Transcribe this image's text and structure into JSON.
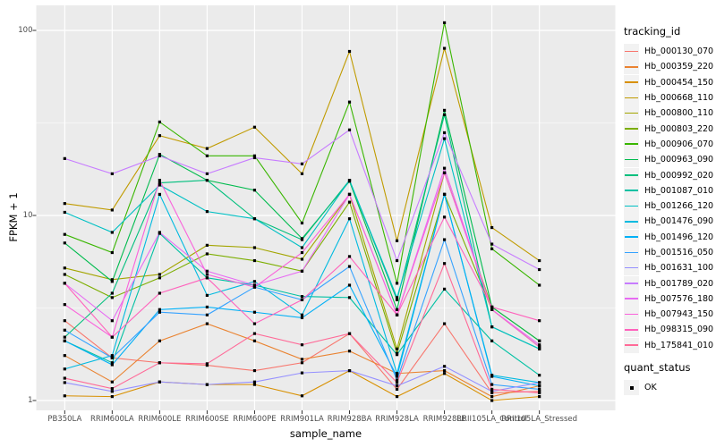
{
  "chart_data": {
    "type": "line",
    "title": "",
    "xlabel": "sample_name",
    "ylabel": "FPKM + 1",
    "y_scale": "log10",
    "y_major_ticks": [
      1,
      10,
      100
    ],
    "y_minor_gridlines": [
      3.162,
      31.62
    ],
    "ylim": [
      0.93,
      135
    ],
    "grid": true,
    "legend_position": "right",
    "legend_title": "tracking_id",
    "quant_legend": {
      "title": "quant_status",
      "items": [
        {
          "label": "OK"
        }
      ]
    },
    "marker": {
      "shape": "square",
      "color": "#000000",
      "size": 3.2
    },
    "panel_bg": "#ebebeb",
    "grid_color": "#ffffff",
    "axis_text_color": "#4d4d4d",
    "legend_key_bg": "#f2f2f2",
    "categories": [
      "PB350LA",
      "RRIM600LA",
      "RRIM600LE",
      "RRIM600SE",
      "RRIM600PE",
      "RRIM901LA",
      "RRIM928BA",
      "RRIM928LA",
      "RRIM928LE",
      "RRII105LA_Control",
      "RRII105LA_Stressed"
    ],
    "series": [
      {
        "name": "Hb_000130_070",
        "color": "#F8766D",
        "values": [
          2.7,
          1.7,
          1.6,
          1.55,
          1.45,
          1.6,
          2.3,
          1.15,
          2.6,
          1.1,
          1.12
        ]
      },
      {
        "name": "Hb_000359_220",
        "color": "#EA8331",
        "values": [
          1.75,
          1.26,
          2.1,
          2.6,
          2.1,
          1.67,
          1.85,
          1.4,
          1.45,
          1.05,
          1.2
        ]
      },
      {
        "name": "Hb_000454_150",
        "color": "#D89000",
        "values": [
          1.06,
          1.05,
          1.26,
          1.22,
          1.22,
          1.06,
          1.45,
          1.05,
          1.4,
          1.0,
          1.05
        ]
      },
      {
        "name": "Hb_000668_110",
        "color": "#C09B00",
        "values": [
          11.6,
          10.7,
          27,
          23,
          30,
          16.8,
          77,
          7.3,
          80,
          8.6,
          5.7
        ]
      },
      {
        "name": "Hb_000800_110",
        "color": "#A3A500",
        "values": [
          5.2,
          4.5,
          4.8,
          6.9,
          6.7,
          5.8,
          13,
          1.9,
          17,
          3.2,
          2.1
        ]
      },
      {
        "name": "Hb_000803_220",
        "color": "#7CAE00",
        "values": [
          4.8,
          3.6,
          4.6,
          6.2,
          5.7,
          5.0,
          11.8,
          1.8,
          13,
          3.1,
          1.95
        ]
      },
      {
        "name": "Hb_000906_070",
        "color": "#39B600",
        "values": [
          7.9,
          6.3,
          32,
          21,
          21,
          9.1,
          41,
          4.3,
          110,
          6.6,
          4.2
        ]
      },
      {
        "name": "Hb_000963_090",
        "color": "#00BB4E",
        "values": [
          7.1,
          4.4,
          21.4,
          15.5,
          13.7,
          7.5,
          15.3,
          3.1,
          37,
          3.2,
          2.1
        ]
      },
      {
        "name": "Hb_000992_020",
        "color": "#00BF7D",
        "values": [
          2.2,
          3.8,
          15,
          15.5,
          9.6,
          7.4,
          15.5,
          3.5,
          35,
          2.5,
          1.9
        ]
      },
      {
        "name": "Hb_001087_010",
        "color": "#00C1A3",
        "values": [
          2.1,
          1.6,
          8.0,
          4.6,
          4.2,
          3.65,
          3.6,
          1.77,
          4.0,
          2.1,
          1.37
        ]
      },
      {
        "name": "Hb_001266_120",
        "color": "#00C0C4",
        "values": [
          10.4,
          8.1,
          14.6,
          10.5,
          9.6,
          6.7,
          15.5,
          3.6,
          26,
          2.5,
          1.9
        ]
      },
      {
        "name": "Hb_001476_090",
        "color": "#00BAE0",
        "values": [
          1.48,
          1.75,
          13,
          3.7,
          4.4,
          2.9,
          9.6,
          1.4,
          13,
          1.37,
          1.25
        ]
      },
      {
        "name": "Hb_001496_120",
        "color": "#00B0F6",
        "values": [
          2.1,
          1.56,
          3.1,
          3.2,
          3.0,
          2.8,
          4.2,
          1.35,
          13,
          1.35,
          1.2
        ]
      },
      {
        "name": "Hb_001516_050",
        "color": "#35A2FF",
        "values": [
          2.4,
          1.7,
          3.0,
          2.9,
          4.1,
          3.5,
          5.3,
          1.29,
          7.4,
          1.22,
          1.15
        ]
      },
      {
        "name": "Hb_001631_100",
        "color": "#9590FF",
        "values": [
          1.25,
          1.12,
          1.26,
          1.22,
          1.26,
          1.41,
          1.45,
          1.2,
          1.53,
          1.12,
          1.25
        ]
      },
      {
        "name": "Hb_001789_020",
        "color": "#C77CFF",
        "values": [
          20.3,
          16.8,
          21,
          16.8,
          20.5,
          19,
          29,
          5.7,
          28,
          7.0,
          5.1
        ]
      },
      {
        "name": "Hb_007576_180",
        "color": "#E76BF3",
        "values": [
          4.3,
          2.7,
          8.1,
          5.0,
          4.2,
          5.0,
          13,
          2.9,
          18,
          3.1,
          2.0
        ]
      },
      {
        "name": "Hb_007943_150",
        "color": "#FA62DB",
        "values": [
          3.3,
          2.2,
          15.5,
          4.8,
          4.1,
          6.3,
          13,
          2.9,
          17,
          3.1,
          1.95
        ]
      },
      {
        "name": "Hb_098315_090",
        "color": "#FF62BC",
        "values": [
          4.3,
          2.2,
          3.8,
          4.6,
          2.6,
          3.5,
          6.0,
          2.9,
          9.8,
          3.2,
          2.7
        ]
      },
      {
        "name": "Hb_175841_010",
        "color": "#FF6A98",
        "values": [
          1.32,
          1.16,
          1.6,
          1.58,
          2.3,
          2.0,
          2.3,
          1.25,
          5.5,
          1.15,
          1.1
        ]
      }
    ]
  }
}
